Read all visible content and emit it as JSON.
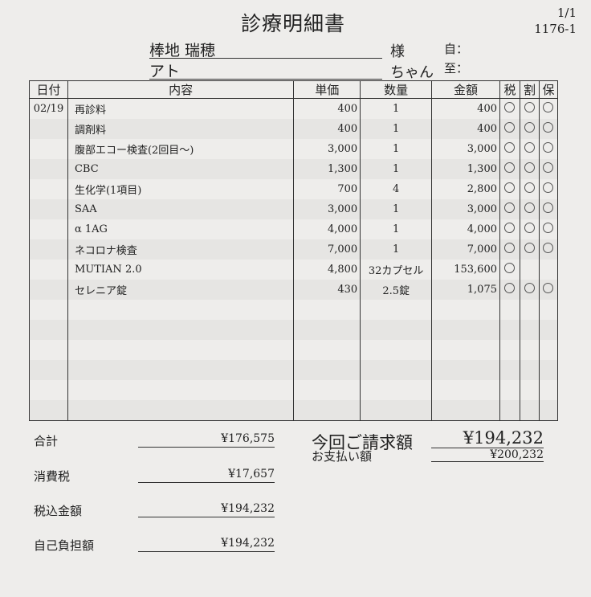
{
  "title": "診療明細書",
  "page": "1/1",
  "doc_no": "1176-1",
  "owner_name": "棒地 瑞穂",
  "owner_suffix": "様",
  "pet_name": "アト",
  "pet_suffix": "ちゃん",
  "from_label": "自：",
  "to_label": "至：",
  "headers": [
    "日付",
    "内容",
    "単価",
    "数量",
    "金額",
    "税",
    "割",
    "保"
  ],
  "rows": [
    {
      "date": "02/19",
      "item": "再診料",
      "price": "400",
      "qty": "1",
      "amount": "400",
      "marks": [
        true,
        true,
        true
      ]
    },
    {
      "date": "",
      "item": "調剤料",
      "price": "400",
      "qty": "1",
      "amount": "400",
      "marks": [
        true,
        true,
        true
      ]
    },
    {
      "date": "",
      "item": "腹部エコー検査(2回目～)",
      "price": "3,000",
      "qty": "1",
      "amount": "3,000",
      "marks": [
        true,
        true,
        true
      ]
    },
    {
      "date": "",
      "item": "CBC",
      "price": "1,300",
      "qty": "1",
      "amount": "1,300",
      "marks": [
        true,
        true,
        true
      ]
    },
    {
      "date": "",
      "item": "生化学(1項目)",
      "price": "700",
      "qty": "4",
      "amount": "2,800",
      "marks": [
        true,
        true,
        true
      ]
    },
    {
      "date": "",
      "item": "SAA",
      "price": "3,000",
      "qty": "1",
      "amount": "3,000",
      "marks": [
        true,
        true,
        true
      ]
    },
    {
      "date": "",
      "item": "α 1AG",
      "price": "4,000",
      "qty": "1",
      "amount": "4,000",
      "marks": [
        true,
        true,
        true
      ]
    },
    {
      "date": "",
      "item": "ネコロナ検査",
      "price": "7,000",
      "qty": "1",
      "amount": "7,000",
      "marks": [
        true,
        true,
        true
      ]
    },
    {
      "date": "",
      "item": "MUTIAN  2.0",
      "price": "4,800",
      "qty": "32カプセル",
      "amount": "153,600",
      "marks": [
        true,
        false,
        false
      ]
    },
    {
      "date": "",
      "item": "セレニア錠",
      "price": "430",
      "qty": "2.5錠",
      "amount": "1,075",
      "marks": [
        true,
        true,
        true
      ]
    }
  ],
  "summary": [
    {
      "label": "合計",
      "value": "¥176,575"
    },
    {
      "label": "消費税",
      "value": "¥17,657"
    },
    {
      "label": "税込金額",
      "value": "¥194,232"
    },
    {
      "label": "自己負担額",
      "value": "¥194,232"
    }
  ],
  "bill_label": "今回ご請求額",
  "bill_value": "¥194,232",
  "pay_label": "お支払い額",
  "pay_value": "¥200,232"
}
